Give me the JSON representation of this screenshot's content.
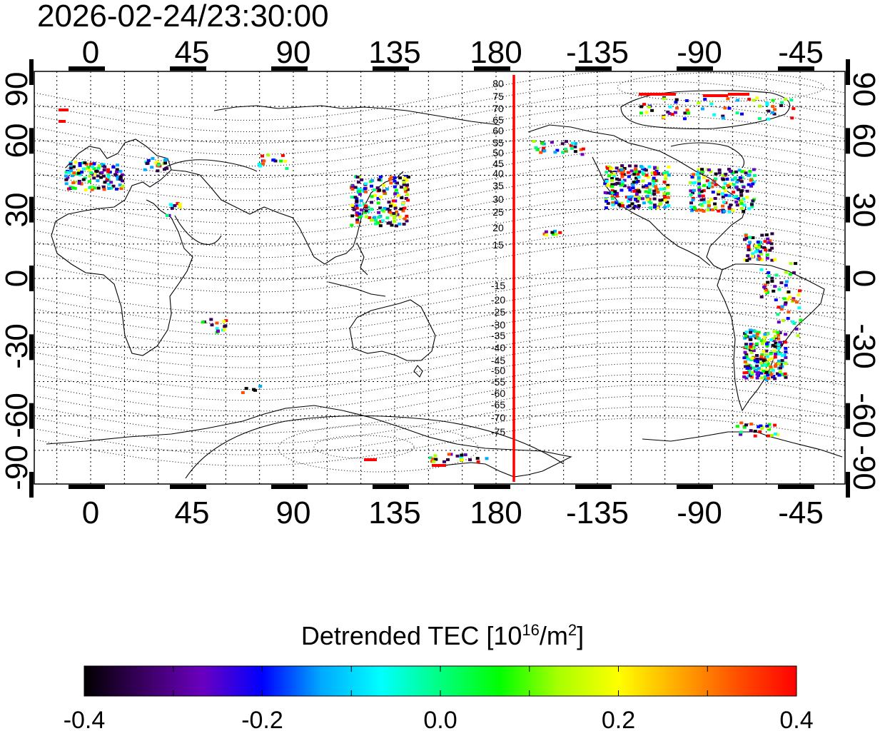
{
  "title": "2026-02-24/23:30:00",
  "map": {
    "lon_ticks": [
      "0",
      "45",
      "90",
      "135",
      "180",
      "-135",
      "-90",
      "-45"
    ],
    "lat_ticks_left": [
      "90",
      "60",
      "30",
      "0",
      "-30",
      "-60",
      "-90"
    ],
    "lat_ticks_right": [
      "90",
      "60",
      "30",
      "0",
      "-30",
      "-60",
      "-90"
    ],
    "contour_labels_north": [
      "80",
      "75",
      "70",
      "65",
      "60",
      "55",
      "50",
      "45",
      "40",
      "35",
      "30",
      "25",
      "20",
      "15"
    ],
    "contour_labels_south": [
      "-15",
      "-20",
      "-25",
      "-30",
      "-35",
      "-40",
      "-45",
      "-50",
      "-55",
      "-60",
      "-65",
      "-70",
      "-75"
    ],
    "terminator_color": "#ff0000",
    "terminator_lon": "-172.5",
    "map_center": "dateline"
  },
  "colorbar": {
    "title_main": "Detrended TEC  [10",
    "title_exp": "16",
    "title_mid": "/m",
    "title_exp2": "2",
    "title_end": "]",
    "tick_labels": [
      "-0.4",
      "-0.2",
      "0.0",
      "0.2",
      "0.4"
    ],
    "range": [
      -0.4,
      0.4
    ],
    "colors": [
      "#000000",
      "#3a0060",
      "#6a00c0",
      "#0000ff",
      "#00aaff",
      "#00ffff",
      "#00ff80",
      "#00ff00",
      "#aaff00",
      "#ffff00",
      "#ffaa00",
      "#ff5000",
      "#ff0000"
    ]
  }
}
